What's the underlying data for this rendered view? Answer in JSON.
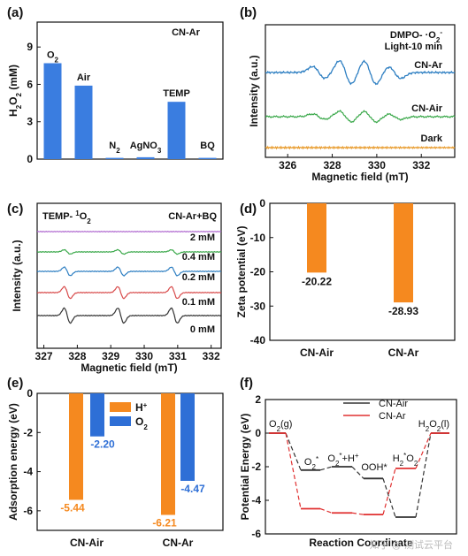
{
  "panels": {
    "a": {
      "label": "(a)",
      "tag": "CN-Ar"
    },
    "b": {
      "label": "(b)",
      "tag1": "DMPO- ·O",
      "tag1b": "2",
      "tag1c": "-",
      "tag2": "Light-10 min"
    },
    "c": {
      "label": "(c)",
      "tag_left": "TEMP- ",
      "tag_left_sup": "1",
      "tag_left_o": "O",
      "tag_left_sub": "2",
      "tag_right": "CN-Ar+BQ"
    },
    "d": {
      "label": "(d)"
    },
    "e": {
      "label": "(e)"
    },
    "f": {
      "label": "(f)"
    }
  },
  "watermark": "知乎 @ 测试云平台",
  "chart_data": [
    {
      "id": "a",
      "type": "bar",
      "ylabel_main": "H",
      "ylabel_sub1": "2",
      "ylabel_mid": "O",
      "ylabel_sub2": "2",
      "ylabel_unit": " (mM)",
      "categories": [
        {
          "main": "O",
          "sub": "2"
        },
        {
          "main": "Air",
          "sub": ""
        },
        {
          "main": "N",
          "sub": "2"
        },
        {
          "main": "AgNO",
          "sub": "3"
        },
        {
          "main": "TEMP",
          "sub": ""
        },
        {
          "main": "BQ",
          "sub": ""
        }
      ],
      "values": [
        7.7,
        5.9,
        0.1,
        0.15,
        4.6,
        0.1
      ],
      "ylim": [
        0,
        11
      ],
      "yticks": [
        "0",
        "3",
        "6",
        "9"
      ],
      "color": "#3a7de0"
    },
    {
      "id": "b",
      "type": "line",
      "xlabel": "Magnetic field (mT)",
      "ylabel": "Intensity (a.u.)",
      "xlim": [
        325,
        333.5
      ],
      "xticks": [
        "326",
        "328",
        "330",
        "332"
      ],
      "series": [
        {
          "name": "CN-Ar",
          "color": "#2e7fc2"
        },
        {
          "name": "CN-Air",
          "color": "#3aa84a"
        },
        {
          "name": "Dark",
          "color": "#e89a2a"
        }
      ]
    },
    {
      "id": "c",
      "type": "line",
      "xlabel": "Magnetic field (mT)",
      "ylabel": "Intensity (a.u.)",
      "xlim": [
        326.8,
        332.3
      ],
      "xticks": [
        "327",
        "328",
        "329",
        "330",
        "331",
        "332"
      ],
      "series": [
        {
          "name": "2 mM",
          "color": "#b06ad0"
        },
        {
          "name": "0.4 mM",
          "color": "#3aa84a"
        },
        {
          "name": "0.2 mM",
          "color": "#2e7fc2"
        },
        {
          "name": "0.1 mM",
          "color": "#d84a4a"
        },
        {
          "name": "0 mM",
          "color": "#333333"
        }
      ]
    },
    {
      "id": "d",
      "type": "bar",
      "ylabel": "Zeta potential (eV)",
      "categories": [
        "CN-Air",
        "CN-Ar"
      ],
      "values": [
        -20.22,
        -28.93
      ],
      "value_labels": [
        "-20.22",
        "-28.93"
      ],
      "ylim": [
        -40,
        0
      ],
      "yticks": [
        "0",
        "-10",
        "-20",
        "-30",
        "-40"
      ],
      "color": "#f5891f"
    },
    {
      "id": "e",
      "type": "bar",
      "ylabel": "Adsorption energy (eV)",
      "categories": [
        "CN-Air",
        "CN-Ar"
      ],
      "series": [
        {
          "name": "H",
          "sup": "+",
          "values": [
            -5.44,
            -6.21
          ],
          "labels": [
            "-5.44",
            "-6.21"
          ],
          "color": "#f5891f"
        },
        {
          "name": "O",
          "sub": "2",
          "values": [
            -2.2,
            -4.47
          ],
          "labels": [
            "-2.20",
            "-4.47"
          ],
          "color": "#2e6fd6"
        }
      ],
      "ylim": [
        -7,
        0
      ],
      "yticks": [
        "0",
        "-2",
        "-4",
        "-6"
      ]
    },
    {
      "id": "f",
      "type": "line",
      "xlabel": "Reaction Coordinate",
      "ylabel": "Potential Energy (eV)",
      "ylim": [
        -6,
        2
      ],
      "yticks": [
        "2",
        "0",
        "-2",
        "-4",
        "-6"
      ],
      "series": [
        {
          "name": "CN-Air",
          "color": "#333333",
          "values": [
            0,
            -2.2,
            -2.0,
            -2.7,
            -5.0,
            0
          ]
        },
        {
          "name": "CN-Ar",
          "color": "#e03030",
          "values": [
            0,
            -4.5,
            -4.75,
            -4.85,
            -2.1,
            0
          ]
        }
      ],
      "state_labels": [
        {
          "t": "O",
          "s": "2",
          "p": "(g)"
        },
        {
          "t": "O",
          "s": "2",
          "sup": "*"
        },
        {
          "t": "O",
          "s": "2",
          "sup": "*",
          "p": "+H",
          "sup2": "+"
        },
        {
          "t": "OOH*"
        },
        {
          "t": "H",
          "s": "2",
          "p": "O",
          "s2": "2",
          "sup": "*"
        },
        {
          "t": "H",
          "s": "2",
          "p": "O",
          "s2": "2",
          "p2": "(l)"
        }
      ]
    }
  ]
}
